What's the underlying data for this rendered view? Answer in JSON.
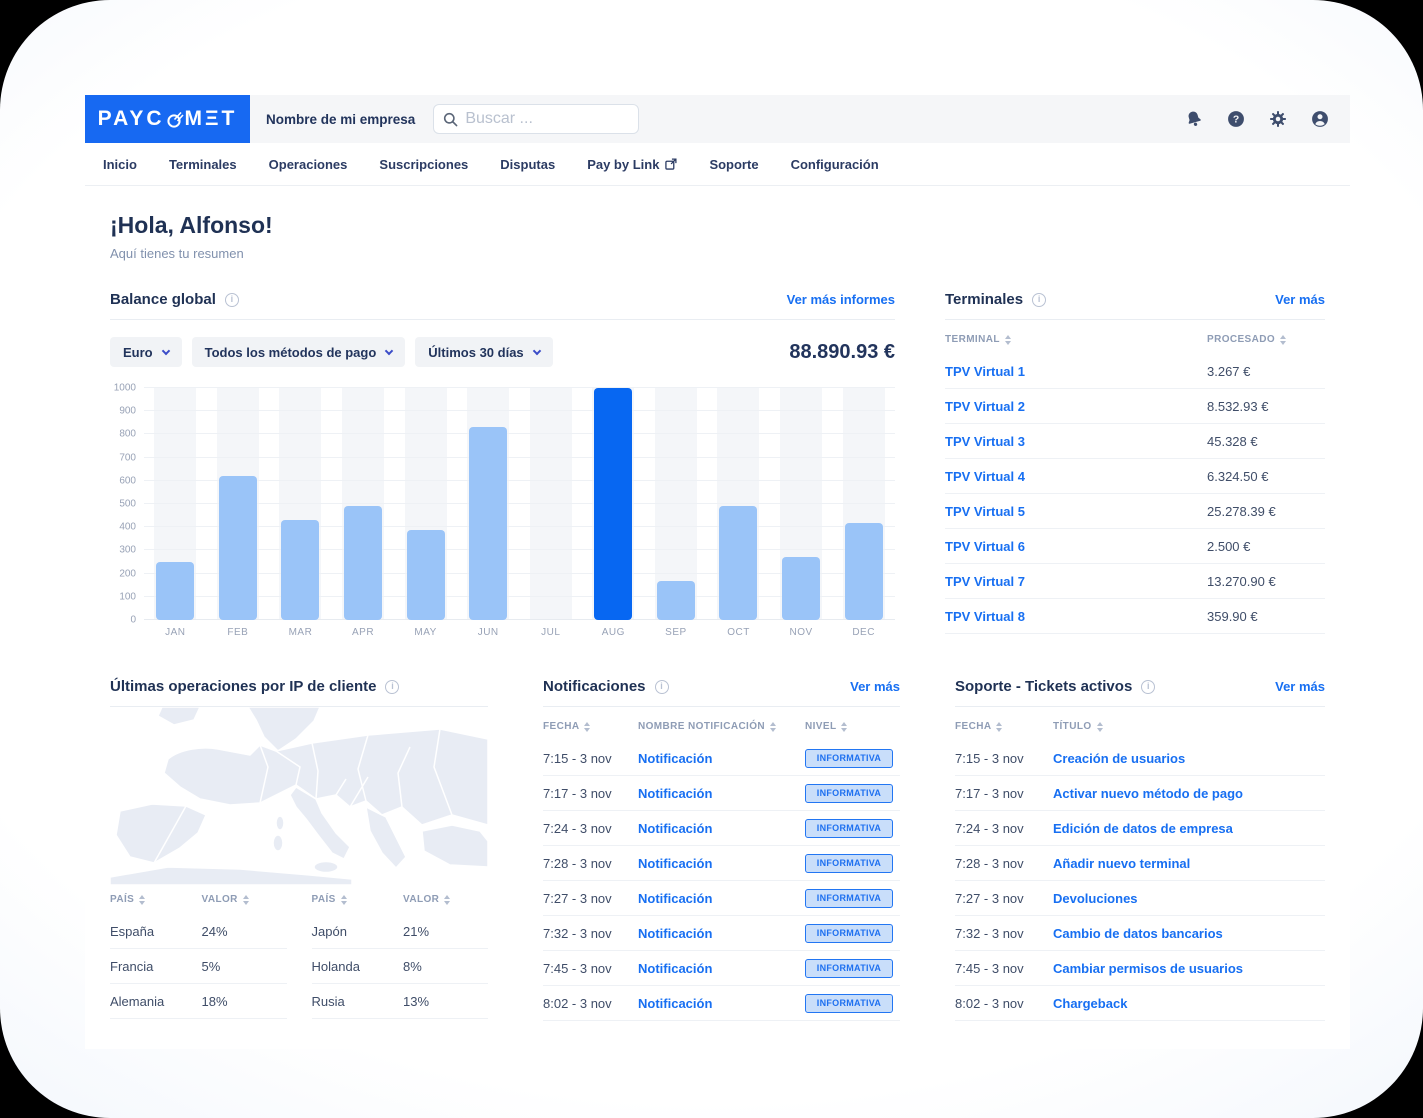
{
  "brand": {
    "name": "PAYCOMET",
    "logo_part1": "PAYC",
    "logo_part2": "MΞT"
  },
  "topbar": {
    "company_name": "Nombre de mi empresa",
    "search_placeholder": "Buscar ...",
    "icons": [
      "notifications-bell-icon",
      "help-icon",
      "settings-gear-icon",
      "account-user-icon"
    ]
  },
  "nav": {
    "items": [
      {
        "label": "Inicio",
        "external": false
      },
      {
        "label": "Terminales",
        "external": false
      },
      {
        "label": "Operaciones",
        "external": false
      },
      {
        "label": "Suscripciones",
        "external": false
      },
      {
        "label": "Disputas",
        "external": false
      },
      {
        "label": "Pay by Link",
        "external": true
      },
      {
        "label": "Soporte",
        "external": false
      },
      {
        "label": "Configuración",
        "external": false
      }
    ]
  },
  "greeting": {
    "title": "¡Hola, Alfonso!",
    "subtitle": "Aquí tienes tu resumen"
  },
  "balance": {
    "title": "Balance global",
    "link": "Ver más informes",
    "filters": [
      "Euro",
      "Todos los métodos de pago",
      "Últimos 30 días"
    ],
    "total": "88.890.93 €"
  },
  "chart_data": {
    "type": "bar",
    "title": "Balance global",
    "categories": [
      "JAN",
      "FEB",
      "MAR",
      "APR",
      "MAY",
      "JUN",
      "JUL",
      "AUG",
      "SEP",
      "OCT",
      "NOV",
      "DEC"
    ],
    "values": [
      250,
      620,
      430,
      490,
      390,
      830,
      0,
      1000,
      170,
      490,
      270,
      420
    ],
    "highlight_index": 7,
    "yticks": [
      0,
      100,
      200,
      300,
      400,
      500,
      600,
      700,
      800,
      900,
      1000
    ],
    "ylim": [
      0,
      1000
    ],
    "xlabel": "",
    "ylabel": "",
    "grid": true,
    "legend": false,
    "bar_color": "#9ac4f8",
    "bar_highlight_color": "#0767f2"
  },
  "terminals": {
    "title": "Terminales",
    "link": "Ver más",
    "columns": [
      "TERMINAL",
      "PROCESADO"
    ],
    "rows": [
      {
        "terminal": "TPV Virtual 1",
        "processed": "3.267 €"
      },
      {
        "terminal": "TPV Virtual 2",
        "processed": "8.532.93 €"
      },
      {
        "terminal": "TPV Virtual 3",
        "processed": "45.328 €"
      },
      {
        "terminal": "TPV Virtual 4",
        "processed": "6.324.50 €"
      },
      {
        "terminal": "TPV Virtual 5",
        "processed": "25.278.39 €"
      },
      {
        "terminal": "TPV Virtual 6",
        "processed": "2.500 €"
      },
      {
        "terminal": "TPV Virtual 7",
        "processed": "13.270.90 €"
      },
      {
        "terminal": "TPV Virtual 8",
        "processed": "359.90 €"
      }
    ]
  },
  "ip_operations": {
    "title": "Últimas operaciones por IP de cliente",
    "columns": [
      "PAÍS",
      "VALOR"
    ],
    "left_rows": [
      {
        "country": "España",
        "value": "24%"
      },
      {
        "country": "Francia",
        "value": "5%"
      },
      {
        "country": "Alemania",
        "value": "18%"
      }
    ],
    "right_rows": [
      {
        "country": "Japón",
        "value": "21%"
      },
      {
        "country": "Holanda",
        "value": "8%"
      },
      {
        "country": "Rusia",
        "value": "13%"
      }
    ]
  },
  "notifications": {
    "title": "Notificaciones",
    "link": "Ver más",
    "columns": [
      "FECHA",
      "NOMBRE NOTIFICACIÓN",
      "NIVEL"
    ],
    "rows": [
      {
        "date": "7:15 - 3 nov",
        "name": "Notificación",
        "level": "INFORMATIVA"
      },
      {
        "date": "7:17 - 3 nov",
        "name": "Notificación",
        "level": "INFORMATIVA"
      },
      {
        "date": "7:24 - 3 nov",
        "name": "Notificación",
        "level": "INFORMATIVA"
      },
      {
        "date": "7:28 - 3 nov",
        "name": "Notificación",
        "level": "INFORMATIVA"
      },
      {
        "date": "7:27 - 3 nov",
        "name": "Notificación",
        "level": "INFORMATIVA"
      },
      {
        "date": "7:32 - 3 nov",
        "name": "Notificación",
        "level": "INFORMATIVA"
      },
      {
        "date": "7:45 - 3 nov",
        "name": "Notificación",
        "level": "INFORMATIVA"
      },
      {
        "date": "8:02 - 3 nov",
        "name": "Notificación",
        "level": "INFORMATIVA"
      }
    ]
  },
  "support": {
    "title": "Soporte - Tickets activos",
    "link": "Ver más",
    "columns": [
      "FECHA",
      "TÍTULO"
    ],
    "rows": [
      {
        "date": "7:15 - 3 nov",
        "title": "Creación de usuarios"
      },
      {
        "date": "7:17 - 3 nov",
        "title": "Activar nuevo método de pago"
      },
      {
        "date": "7:24 - 3 nov",
        "title": "Edición de datos de empresa"
      },
      {
        "date": "7:28 - 3 nov",
        "title": "Añadir nuevo terminal"
      },
      {
        "date": "7:27 - 3 nov",
        "title": "Devoluciones"
      },
      {
        "date": "7:32 - 3 nov",
        "title": "Cambio de datos bancarios"
      },
      {
        "date": "7:45 - 3 nov",
        "title": "Cambiar permisos de usuarios"
      },
      {
        "date": "8:02 - 3 nov",
        "title": "Chargeback"
      }
    ]
  },
  "colors": {
    "accent": "#176ff2",
    "logo_bg": "#1769f2",
    "bar": "#9ac4f8",
    "bar_highlight": "#0767f2",
    "badge_bg": "#c9defa",
    "heading": "#1f3154"
  }
}
